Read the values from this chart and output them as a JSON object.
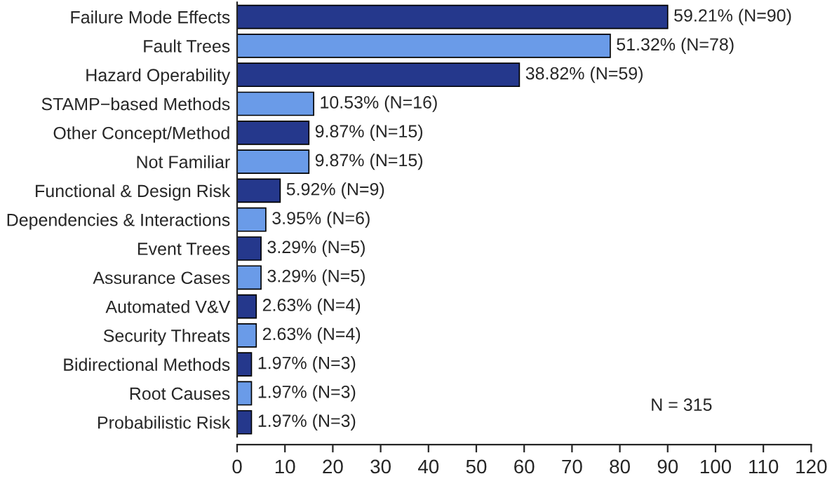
{
  "chart_data": {
    "type": "bar",
    "orientation": "horizontal",
    "categories": [
      "Failure Mode Effects",
      "Fault Trees",
      "Hazard Operability",
      "STAMP−based Methods",
      "Other Concept/Method",
      "Not Familiar",
      "Functional & Design Risk",
      "Dependencies & Interactions",
      "Event Trees",
      "Assurance Cases",
      "Automated V&V",
      "Security Threats",
      "Bidirectional Methods",
      "Root Causes",
      "Probabilistic Risk"
    ],
    "values": [
      90,
      78,
      59,
      16,
      15,
      15,
      9,
      6,
      5,
      5,
      4,
      4,
      3,
      3,
      3
    ],
    "colors": [
      "#25388c",
      "#6a9be8",
      "#25388c",
      "#6a9be8",
      "#25388c",
      "#6a9be8",
      "#25388c",
      "#6a9be8",
      "#25388c",
      "#6a9be8",
      "#25388c",
      "#6a9be8",
      "#25388c",
      "#6a9be8",
      "#25388c"
    ],
    "value_labels": [
      "59.21% (N=90)",
      "51.32% (N=78)",
      "38.82% (N=59)",
      "10.53% (N=16)",
      "9.87% (N=15)",
      "9.87% (N=15)",
      "5.92% (N=9)",
      "3.95% (N=6)",
      "3.29% (N=5)",
      "3.29% (N=5)",
      "2.63% (N=4)",
      "2.63% (N=4)",
      "1.97% (N=3)",
      "1.97% (N=3)",
      "1.97% (N=3)"
    ],
    "xlim": [
      0,
      120
    ],
    "xticks": [
      0,
      10,
      20,
      30,
      40,
      50,
      60,
      70,
      80,
      90,
      100,
      110,
      120
    ],
    "annotations": [
      "N = 315"
    ],
    "grid": false,
    "legend": false
  }
}
